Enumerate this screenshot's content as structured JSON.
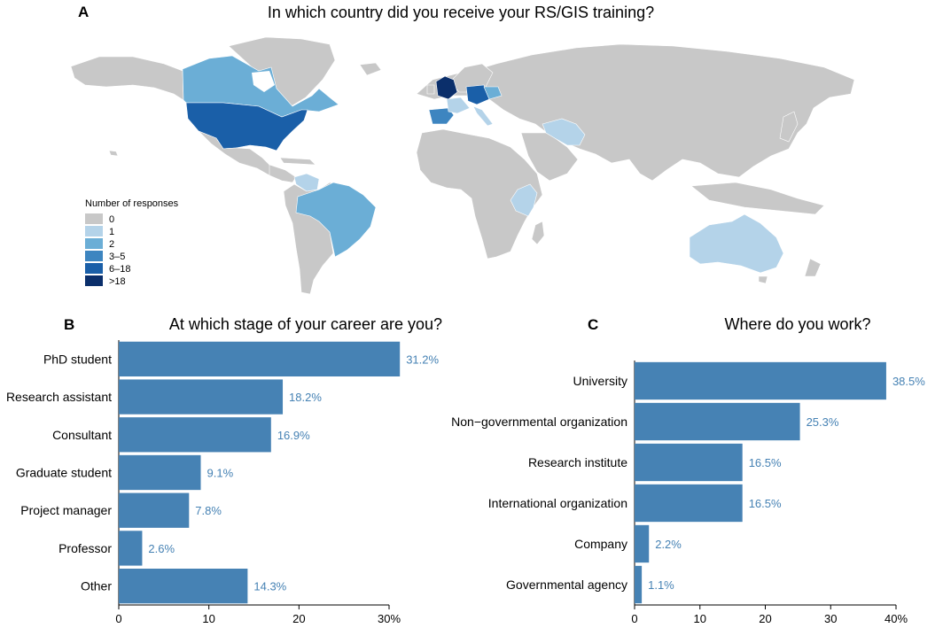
{
  "colors": {
    "bar": "#4682b4",
    "label": "#4682b4",
    "map_scale": [
      "#c8c8c8",
      "#b4d3e9",
      "#6baed6",
      "#3d85c0",
      "#1a5fa8",
      "#0b2f6b"
    ]
  },
  "panel_a": {
    "letter": "A",
    "title": "In which country did you receive your RS/GIS training?",
    "legend_title": "Number of responses",
    "legend_labels": [
      "0",
      "1",
      "2",
      "3–5",
      "6–18",
      ">18"
    ]
  },
  "panel_b": {
    "letter": "B",
    "title": "At which stage of your career are you?",
    "tick_labels": [
      "0",
      "10",
      "20",
      "30%"
    ]
  },
  "panel_c": {
    "letter": "C",
    "title": "Where do you work?",
    "tick_labels": [
      "0",
      "10",
      "20",
      "30",
      "40%"
    ]
  },
  "chart_data": [
    {
      "type": "map",
      "title": "In which country did you receive your RS/GIS training?",
      "legend": {
        "title": "Number of responses",
        "bins": [
          "0",
          "1",
          "2",
          "3–5",
          "6–18",
          ">18"
        ]
      },
      "regions": [
        {
          "name": "United Kingdom",
          "bin": ">18"
        },
        {
          "name": "United States",
          "bin": "6–18"
        },
        {
          "name": "Germany",
          "bin": "6–18"
        },
        {
          "name": "Spain",
          "bin": "3–5"
        },
        {
          "name": "Canada",
          "bin": "2"
        },
        {
          "name": "Brazil",
          "bin": "2"
        },
        {
          "name": "Netherlands",
          "bin": "2"
        },
        {
          "name": "Australia",
          "bin": "1"
        },
        {
          "name": "Iran",
          "bin": "1"
        },
        {
          "name": "Kenya",
          "bin": "1"
        },
        {
          "name": "Tanzania",
          "bin": "1"
        },
        {
          "name": "Colombia",
          "bin": "1"
        },
        {
          "name": "France",
          "bin": "1"
        },
        {
          "name": "Italy",
          "bin": "1"
        }
      ]
    },
    {
      "type": "bar",
      "orientation": "horizontal",
      "title": "At which stage of your career are you?",
      "categories": [
        "PhD student",
        "Research assistant",
        "Consultant",
        "Graduate student",
        "Project manager",
        "Professor",
        "Other"
      ],
      "values": [
        31.2,
        18.2,
        16.9,
        9.1,
        7.8,
        2.6,
        14.3
      ],
      "labels": [
        "31.2%",
        "18.2%",
        "16.9%",
        "9.1%",
        "7.8%",
        "2.6%",
        "14.3%"
      ],
      "xlim": [
        0,
        30
      ],
      "ticks": [
        0,
        10,
        20,
        30
      ]
    },
    {
      "type": "bar",
      "orientation": "horizontal",
      "title": "Where do you work?",
      "categories": [
        "University",
        "Non−governmental organization",
        "Research institute",
        "International organization",
        "Company",
        "Governmental agency"
      ],
      "values": [
        38.5,
        25.3,
        16.5,
        16.5,
        2.2,
        1.1
      ],
      "labels": [
        "38.5%",
        "25.3%",
        "16.5%",
        "16.5%",
        "2.2%",
        "1.1%"
      ],
      "xlim": [
        0,
        40
      ],
      "ticks": [
        0,
        10,
        20,
        30,
        40
      ]
    }
  ]
}
